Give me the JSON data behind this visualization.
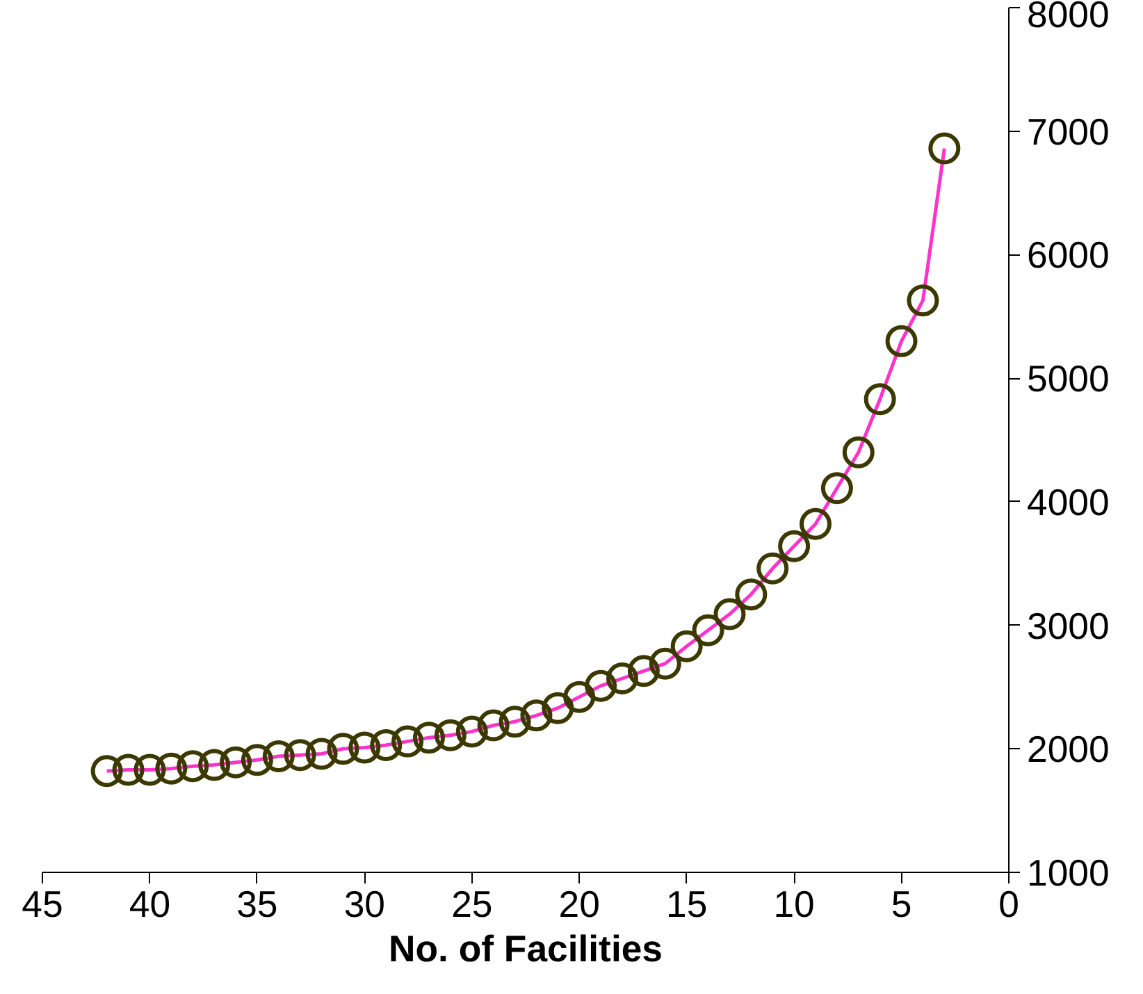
{
  "chart_data": {
    "type": "line",
    "xlabel": "No. of Facilities",
    "x": [
      42,
      41,
      40,
      39,
      38,
      37,
      36,
      35,
      34,
      33,
      32,
      31,
      30,
      29,
      28,
      27,
      26,
      25,
      24,
      23,
      22,
      21,
      20,
      19,
      18,
      17,
      16,
      15,
      14,
      13,
      12,
      11,
      10,
      9,
      8,
      7,
      6,
      5,
      4,
      3
    ],
    "series": [
      {
        "color": "#ff33cc",
        "values": [
          1820,
          1830,
          1830,
          1840,
          1860,
          1870,
          1890,
          1910,
          1940,
          1950,
          1960,
          2000,
          2010,
          2030,
          2060,
          2090,
          2110,
          2140,
          2190,
          2220,
          2270,
          2330,
          2420,
          2510,
          2570,
          2630,
          2690,
          2830,
          2960,
          3090,
          3250,
          3460,
          3640,
          3820,
          4110,
          4400,
          4830,
          5300,
          5630,
          6860
        ]
      }
    ],
    "marker": "circle",
    "line_style": "solid",
    "xlim": [
      45,
      0
    ],
    "xticks": [
      45,
      40,
      35,
      30,
      25,
      20,
      15,
      10,
      5,
      0
    ],
    "ylim": [
      1000,
      8000
    ],
    "yticks": [
      1000,
      2000,
      3000,
      4000,
      5000,
      6000,
      7000,
      8000
    ],
    "grid": false
  }
}
